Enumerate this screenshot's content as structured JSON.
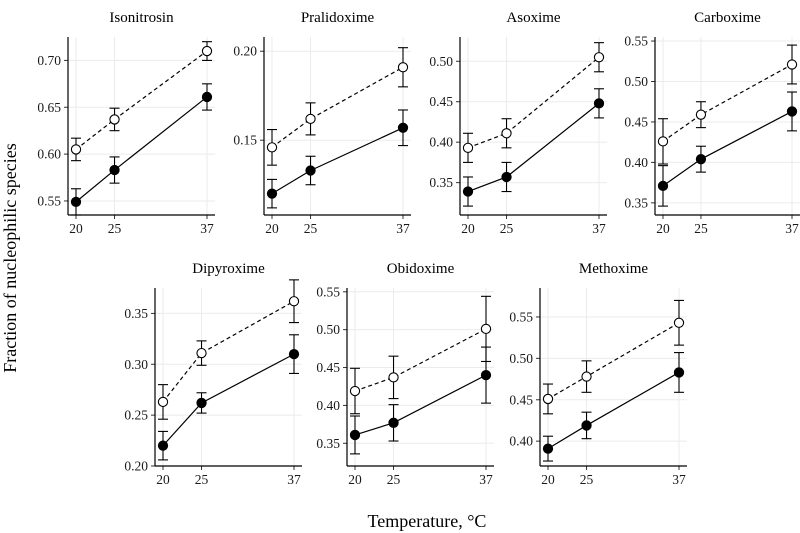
{
  "figure": {
    "ylabel": "Fraction of nucleophilic species",
    "xlabel": "Temperature, °C"
  },
  "chart_data": [
    {
      "type": "line",
      "title": "Isonitrosin",
      "x": [
        20,
        25,
        37
      ],
      "xticks": [
        "20",
        "25",
        "37"
      ],
      "ylim": [
        0.535,
        0.725
      ],
      "yticks": [
        "0.55",
        "0.60",
        "0.65",
        "0.70"
      ],
      "grid": true,
      "series": [
        {
          "style": "dashed",
          "marker": "open-circle",
          "values": [
            0.605,
            0.637,
            0.71
          ],
          "errors": [
            0.012,
            0.012,
            0.01
          ]
        },
        {
          "style": "solid",
          "marker": "filled-circle",
          "values": [
            0.549,
            0.583,
            0.661
          ],
          "errors": [
            0.014,
            0.014,
            0.014
          ]
        }
      ]
    },
    {
      "type": "line",
      "title": "Pralidoxime",
      "x": [
        20,
        25,
        37
      ],
      "xticks": [
        "20",
        "25",
        "37"
      ],
      "ylim": [
        0.108,
        0.208
      ],
      "yticks": [
        "0.15",
        "0.20"
      ],
      "grid": true,
      "series": [
        {
          "style": "dashed",
          "marker": "open-circle",
          "values": [
            0.146,
            0.162,
            0.191
          ],
          "errors": [
            0.01,
            0.009,
            0.011
          ]
        },
        {
          "style": "solid",
          "marker": "filled-circle",
          "values": [
            0.12,
            0.133,
            0.157
          ],
          "errors": [
            0.008,
            0.008,
            0.01
          ]
        }
      ]
    },
    {
      "type": "line",
      "title": "Asoxime",
      "x": [
        20,
        25,
        37
      ],
      "xticks": [
        "20",
        "25",
        "37"
      ],
      "ylim": [
        0.31,
        0.53
      ],
      "yticks": [
        "0.35",
        "0.40",
        "0.45",
        "0.50"
      ],
      "grid": true,
      "series": [
        {
          "style": "dashed",
          "marker": "open-circle",
          "values": [
            0.393,
            0.411,
            0.505
          ],
          "errors": [
            0.018,
            0.018,
            0.018
          ]
        },
        {
          "style": "solid",
          "marker": "filled-circle",
          "values": [
            0.339,
            0.357,
            0.448
          ],
          "errors": [
            0.018,
            0.018,
            0.018
          ]
        }
      ]
    },
    {
      "type": "line",
      "title": "Carboxime",
      "x": [
        20,
        25,
        37
      ],
      "xticks": [
        "20",
        "25",
        "37"
      ],
      "ylim": [
        0.335,
        0.555
      ],
      "yticks": [
        "0.35",
        "0.40",
        "0.45",
        "0.50",
        "0.55"
      ],
      "grid": true,
      "series": [
        {
          "style": "dashed",
          "marker": "open-circle",
          "values": [
            0.426,
            0.459,
            0.521
          ],
          "errors": [
            0.028,
            0.016,
            0.024
          ]
        },
        {
          "style": "solid",
          "marker": "filled-circle",
          "values": [
            0.371,
            0.404,
            0.463
          ],
          "errors": [
            0.025,
            0.016,
            0.024
          ]
        }
      ]
    },
    {
      "type": "line",
      "title": "Dipyroxime",
      "x": [
        20,
        25,
        37
      ],
      "xticks": [
        "20",
        "25",
        "37"
      ],
      "ylim": [
        0.2,
        0.375
      ],
      "yticks": [
        "0.20",
        "0.25",
        "0.30",
        "0.35"
      ],
      "grid": true,
      "series": [
        {
          "style": "dashed",
          "marker": "open-circle",
          "values": [
            0.263,
            0.311,
            0.362
          ],
          "errors": [
            0.017,
            0.012,
            0.021
          ]
        },
        {
          "style": "solid",
          "marker": "filled-circle",
          "values": [
            0.22,
            0.262,
            0.31
          ],
          "errors": [
            0.014,
            0.01,
            0.019
          ]
        }
      ]
    },
    {
      "type": "line",
      "title": "Obidoxime",
      "x": [
        20,
        25,
        37
      ],
      "xticks": [
        "20",
        "25",
        "37"
      ],
      "ylim": [
        0.32,
        0.555
      ],
      "yticks": [
        "0.35",
        "0.40",
        "0.45",
        "0.50",
        "0.55"
      ],
      "grid": true,
      "series": [
        {
          "style": "dashed",
          "marker": "open-circle",
          "values": [
            0.419,
            0.437,
            0.501
          ],
          "errors": [
            0.03,
            0.028,
            0.043
          ]
        },
        {
          "style": "solid",
          "marker": "filled-circle",
          "values": [
            0.361,
            0.377,
            0.44
          ],
          "errors": [
            0.025,
            0.024,
            0.037
          ]
        }
      ]
    },
    {
      "type": "line",
      "title": "Methoxime",
      "x": [
        20,
        25,
        37
      ],
      "xticks": [
        "20",
        "25",
        "37"
      ],
      "ylim": [
        0.37,
        0.585
      ],
      "yticks": [
        "0.40",
        "0.45",
        "0.50",
        "0.55"
      ],
      "grid": true,
      "series": [
        {
          "style": "dashed",
          "marker": "open-circle",
          "values": [
            0.451,
            0.478,
            0.543
          ],
          "errors": [
            0.018,
            0.019,
            0.027
          ]
        },
        {
          "style": "solid",
          "marker": "filled-circle",
          "values": [
            0.391,
            0.419,
            0.483
          ],
          "errors": [
            0.015,
            0.016,
            0.024
          ]
        }
      ]
    }
  ]
}
